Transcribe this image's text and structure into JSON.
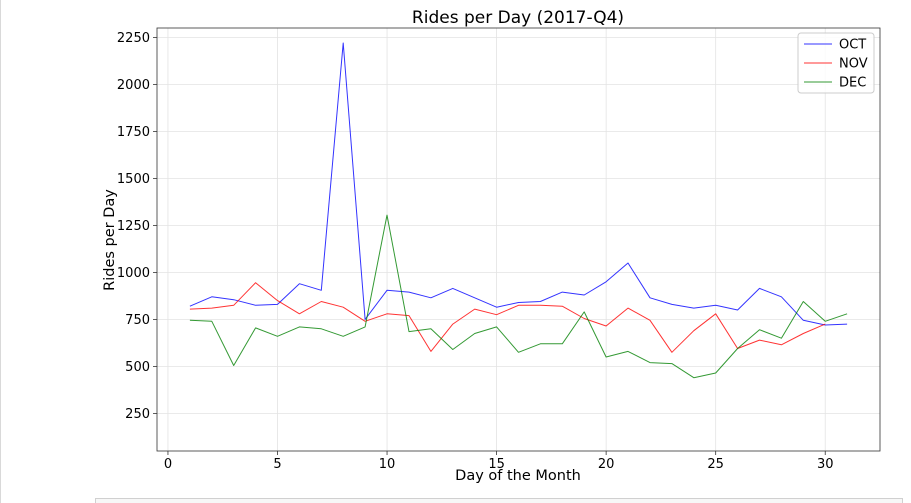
{
  "chart_data": {
    "type": "line",
    "title": "Rides per Day (2017-Q4)",
    "xlabel": "Day of the Month",
    "ylabel": "Rides per Day",
    "xlim": [
      -0.5,
      32.5
    ],
    "ylim": [
      50,
      2300
    ],
    "xticks": [
      0,
      5,
      10,
      15,
      20,
      25,
      30
    ],
    "yticks": [
      250,
      500,
      750,
      1000,
      1250,
      1500,
      1750,
      2000,
      2250
    ],
    "grid": true,
    "legend_position": "top-right",
    "x": [
      1,
      2,
      3,
      4,
      5,
      6,
      7,
      8,
      9,
      10,
      11,
      12,
      13,
      14,
      15,
      16,
      17,
      18,
      19,
      20,
      21,
      22,
      23,
      24,
      25,
      26,
      27,
      28,
      29,
      30,
      31
    ],
    "series": [
      {
        "name": "OCT",
        "color": "#0000ff",
        "values": [
          820,
          870,
          855,
          825,
          830,
          940,
          905,
          2220,
          750,
          905,
          895,
          865,
          915,
          865,
          815,
          840,
          845,
          895,
          880,
          950,
          1050,
          865,
          830,
          810,
          825,
          800,
          915,
          870,
          745,
          720,
          725
        ]
      },
      {
        "name": "NOV",
        "color": "#ff0000",
        "values": [
          805,
          810,
          825,
          945,
          850,
          780,
          845,
          815,
          740,
          780,
          770,
          580,
          725,
          805,
          775,
          825,
          825,
          820,
          755,
          715,
          810,
          745,
          575,
          690,
          780,
          595,
          640,
          615,
          675,
          725,
          null
        ]
      },
      {
        "name": "DEC",
        "color": "#008000",
        "values": [
          745,
          740,
          505,
          705,
          660,
          710,
          700,
          660,
          710,
          1305,
          685,
          700,
          590,
          675,
          710,
          575,
          620,
          620,
          790,
          550,
          580,
          520,
          515,
          440,
          465,
          595,
          695,
          650,
          845,
          740,
          780
        ]
      }
    ]
  }
}
